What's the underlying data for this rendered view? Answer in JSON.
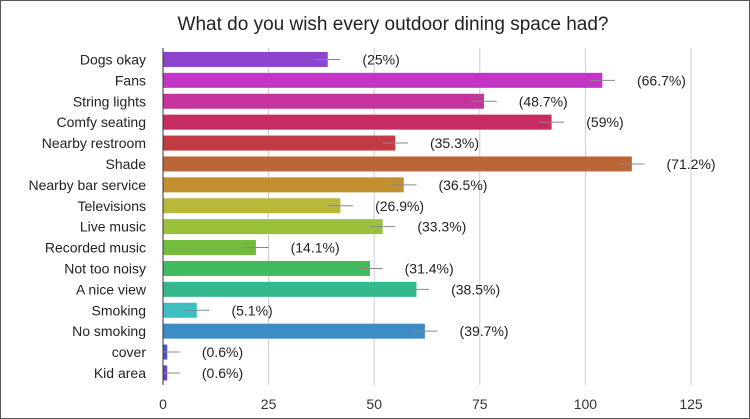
{
  "chart_data": {
    "type": "bar",
    "orientation": "horizontal",
    "title": "What do you wish every outdoor dining space had?",
    "xlabel": "",
    "ylabel": "",
    "xlim": [
      0,
      125
    ],
    "xticks": [
      0,
      25,
      50,
      75,
      100,
      125
    ],
    "grid": true,
    "legend": "none",
    "error_bars": true,
    "categories": [
      "Dogs okay",
      "Fans",
      "String lights",
      "Comfy seating",
      "Nearby restroom",
      "Shade",
      "Nearby bar service",
      "Televisions",
      "Live music",
      "Recorded music",
      "Not too noisy",
      "A nice view",
      "Smoking",
      "No smoking",
      "cover",
      "Kid area"
    ],
    "values": [
      39,
      104,
      76,
      92,
      55,
      111,
      57,
      42,
      52,
      22,
      49,
      60,
      8,
      62,
      1,
      1
    ],
    "error_margin": [
      3,
      3,
      3,
      3,
      3,
      3,
      3,
      3,
      3,
      3,
      3,
      3,
      3,
      3,
      3,
      3
    ],
    "data_labels": [
      "(25%)",
      "(66.7%)",
      "(48.7%)",
      "(59%)",
      "(35.3%)",
      "(71.2%)",
      "(36.5%)",
      "(26.9%)",
      "(33.3%)",
      "(14.1%)",
      "(31.4%)",
      "(38.5%)",
      "(5.1%)",
      "(39.7%)",
      "(0.6%)",
      "(0.6%)"
    ],
    "colors": [
      "#8e44cc",
      "#c235c5",
      "#c7339c",
      "#c52c63",
      "#c23b44",
      "#bc6638",
      "#c29030",
      "#b8b83a",
      "#9bc03c",
      "#73bb3c",
      "#3fbb60",
      "#36b88e",
      "#3dbfbf",
      "#3d8dc5",
      "#4a56c9",
      "#6a45c7"
    ],
    "colors_meta": {
      "gridline": "#cccccc",
      "axis": "#333333",
      "errorbar": "#888888",
      "background": "#ffffff"
    }
  }
}
